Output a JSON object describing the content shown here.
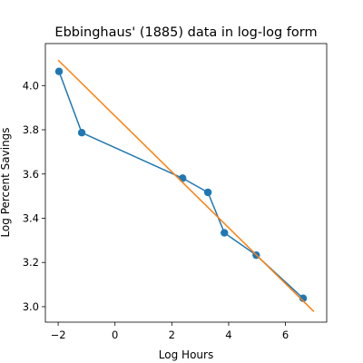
{
  "chart_data": {
    "type": "line",
    "title": "Ebbinghaus' (1885) data in log-log form",
    "xlabel": "Log Hours",
    "ylabel": "Log Percent Savings",
    "xlim": [
      -2.45,
      7.45
    ],
    "ylim": [
      2.93,
      4.19
    ],
    "xticks": [
      -2,
      0,
      2,
      4,
      6
    ],
    "xtick_labels": [
      "−2",
      "0",
      "2",
      "4",
      "6"
    ],
    "yticks": [
      3.0,
      3.2,
      3.4,
      3.6,
      3.8,
      4.0
    ],
    "ytick_labels": [
      "3.0",
      "3.2",
      "3.4",
      "3.6",
      "3.8",
      "4.0"
    ],
    "grid": false,
    "series": [
      {
        "color": "#1f77b4",
        "marker": "circle",
        "x": [
          -1.97,
          -1.17,
          2.38,
          3.27,
          3.85,
          4.97,
          6.62
        ],
        "y": [
          4.064,
          3.787,
          3.581,
          3.517,
          3.334,
          3.233,
          3.038
        ]
      },
      {
        "color": "#ff7f0e",
        "marker": "none",
        "x": [
          -2.0,
          7.0
        ],
        "y": [
          4.115,
          2.978
        ]
      }
    ]
  }
}
